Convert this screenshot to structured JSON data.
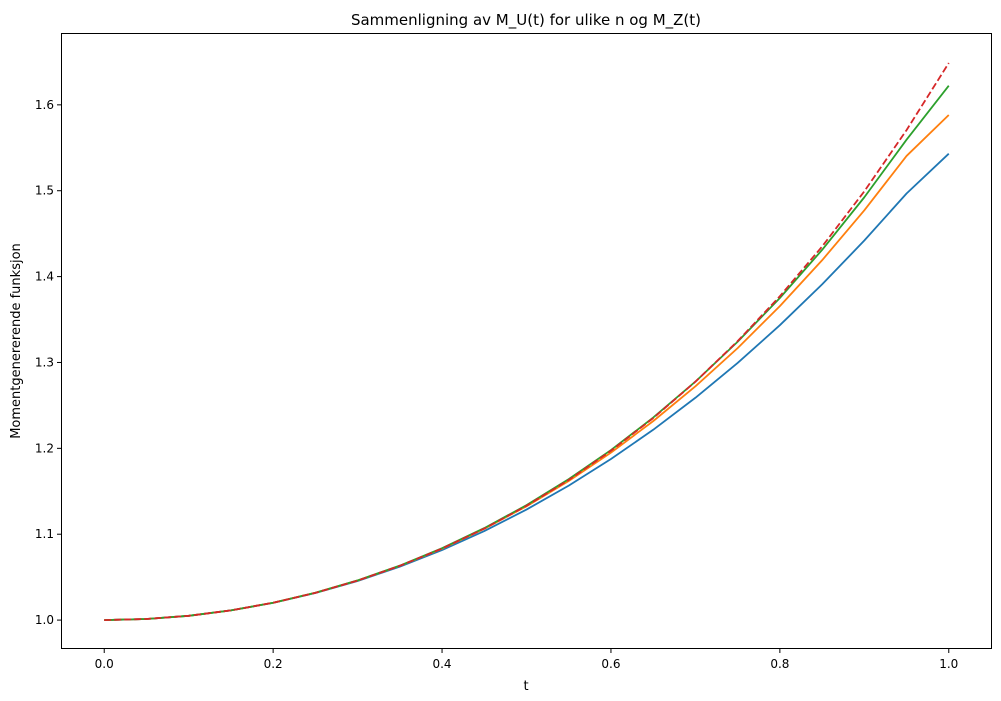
{
  "chart_data": {
    "type": "line",
    "title": "Sammenligning av M_U(t) for ulike n og M_Z(t)",
    "xlabel": "t",
    "ylabel": "Momentgenererende funksjon",
    "xlim": [
      -0.05,
      1.05
    ],
    "ylim": [
      0.9675,
      1.6825
    ],
    "xticks": [
      0.0,
      0.2,
      0.4,
      0.6,
      0.8,
      1.0
    ],
    "xtick_labels": [
      "0.0",
      "0.2",
      "0.4",
      "0.6",
      "0.8",
      "1.0"
    ],
    "yticks": [
      1.0,
      1.1,
      1.2,
      1.3,
      1.4,
      1.5,
      1.6
    ],
    "ytick_labels": [
      "1.0",
      "1.1",
      "1.2",
      "1.3",
      "1.4",
      "1.5",
      "1.6"
    ],
    "grid": false,
    "legend": "none",
    "x": [
      0.0,
      0.05,
      0.1,
      0.15,
      0.2,
      0.25,
      0.3,
      0.35,
      0.4,
      0.45,
      0.5,
      0.55,
      0.6,
      0.65,
      0.7,
      0.75,
      0.8,
      0.85,
      0.9,
      0.95,
      1.0
    ],
    "series": [
      {
        "color": "#1f77b4",
        "style": "solid",
        "values": [
          1.0,
          1.0013,
          1.005,
          1.0113,
          1.0201,
          1.0315,
          1.0455,
          1.0622,
          1.0816,
          1.1037,
          1.1287,
          1.1566,
          1.1876,
          1.2216,
          1.2589,
          1.2994,
          1.3434,
          1.3909,
          1.442,
          1.4968,
          1.5431
        ]
      },
      {
        "color": "#ff7f0e",
        "style": "solid",
        "values": [
          1.0,
          1.0013,
          1.005,
          1.0113,
          1.0202,
          1.0318,
          1.0461,
          1.0632,
          1.0832,
          1.1063,
          1.1325,
          1.162,
          1.195,
          1.2317,
          1.2722,
          1.3167,
          1.3656,
          1.419,
          1.4772,
          1.5405,
          1.5882
        ]
      },
      {
        "color": "#2ca02c",
        "style": "solid",
        "values": [
          1.0,
          1.0013,
          1.005,
          1.0113,
          1.0202,
          1.0318,
          1.0462,
          1.0634,
          1.0837,
          1.1071,
          1.1338,
          1.1641,
          1.198,
          1.2358,
          1.2777,
          1.3241,
          1.3751,
          1.4311,
          1.4924,
          1.5594,
          1.6223
        ]
      },
      {
        "color": "#d62728",
        "style": "dashed",
        "values": [
          1.0,
          1.0013,
          1.005,
          1.0113,
          1.0202,
          1.0317,
          1.046,
          1.0632,
          1.0833,
          1.1066,
          1.1331,
          1.1632,
          1.1972,
          1.2352,
          1.2776,
          1.3248,
          1.3771,
          1.435,
          1.4993,
          1.5706,
          1.6487
        ]
      }
    ]
  }
}
